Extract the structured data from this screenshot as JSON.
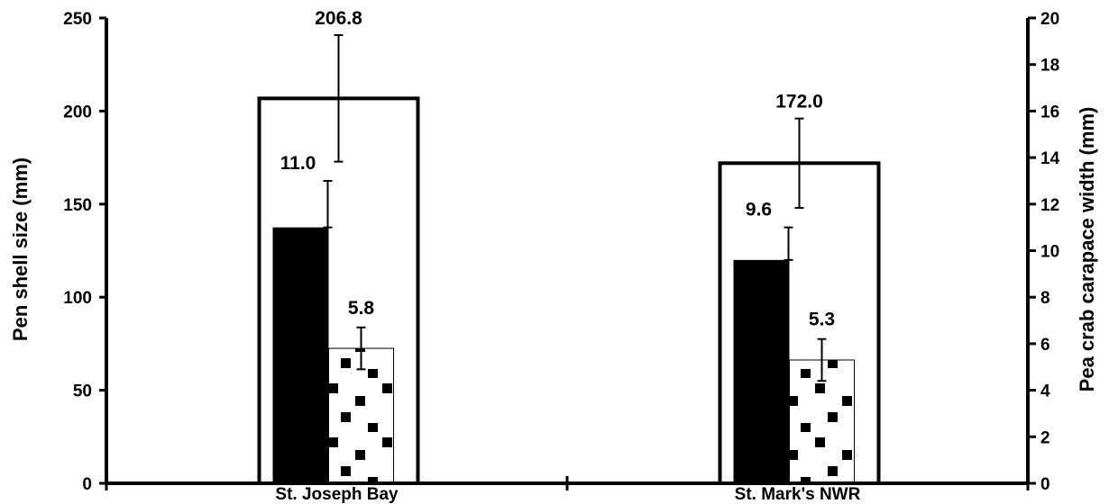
{
  "chart_data": {
    "type": "bar",
    "categories": [
      "St. Joseph Bay",
      "St. Mark's NWR"
    ],
    "series": [
      {
        "axis": "left",
        "style": "outline",
        "values": [
          206.8,
          172.0
        ],
        "error": [
          34,
          24
        ],
        "labels": [
          "206.8",
          "172.0"
        ]
      },
      {
        "axis": "right",
        "style": "solid-black",
        "values": [
          11.0,
          9.6
        ],
        "error": [
          2.0,
          1.4
        ],
        "labels": [
          "11.0",
          "9.6"
        ]
      },
      {
        "axis": "right",
        "style": "dotted-pattern",
        "values": [
          5.8,
          5.3
        ],
        "error": [
          0.9,
          0.9
        ],
        "labels": [
          "5.8",
          "5.3"
        ]
      }
    ],
    "ylabel": "Pen shell size (mm)",
    "y2label": "Pea crab carapace width (mm)",
    "ylim": [
      0,
      250
    ],
    "y2lim": [
      0,
      20
    ],
    "yticks": [
      "0",
      "50",
      "100",
      "150",
      "200",
      "250"
    ],
    "y2ticks": [
      "0",
      "2",
      "4",
      "6",
      "8",
      "10",
      "12",
      "14",
      "16",
      "18",
      "20"
    ],
    "grid": false,
    "colors": {
      "bar_fill": "#000000",
      "outline": "#000000",
      "background": "#ffffff"
    }
  }
}
